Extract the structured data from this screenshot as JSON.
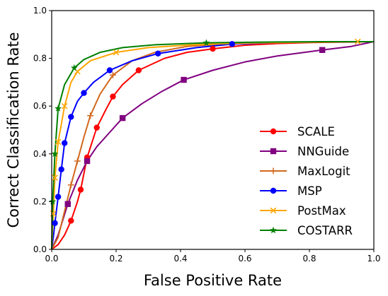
{
  "chart_data": {
    "type": "line",
    "title": "",
    "xlabel": "False Positive Rate",
    "ylabel": "Correct Classification Rate",
    "xlim": [
      0,
      1
    ],
    "ylim": [
      0,
      1
    ],
    "xticks": [
      "0.0",
      "0.2",
      "0.4",
      "0.6",
      "0.8",
      "1.0"
    ],
    "yticks": [
      "0.0",
      "0.2",
      "0.4",
      "0.6",
      "0.8",
      "1.0"
    ],
    "grid": false,
    "legend_position": "lower-right",
    "series": [
      {
        "name": "SCALE",
        "color": "#ff0000",
        "marker": "circle",
        "points": [
          [
            0,
            0
          ],
          [
            0.02,
            0.02
          ],
          [
            0.04,
            0.06
          ],
          [
            0.06,
            0.12
          ],
          [
            0.08,
            0.2
          ],
          [
            0.09,
            0.25
          ],
          [
            0.11,
            0.385
          ],
          [
            0.14,
            0.51
          ],
          [
            0.17,
            0.59
          ],
          [
            0.19,
            0.64
          ],
          [
            0.22,
            0.69
          ],
          [
            0.27,
            0.75
          ],
          [
            0.35,
            0.8
          ],
          [
            0.42,
            0.825
          ],
          [
            0.5,
            0.84
          ],
          [
            0.6,
            0.855
          ],
          [
            0.7,
            0.862
          ],
          [
            0.8,
            0.866
          ],
          [
            0.9,
            0.868
          ],
          [
            1.0,
            0.87
          ]
        ],
        "markers": [
          [
            0.06,
            0.12
          ],
          [
            0.09,
            0.25
          ],
          [
            0.11,
            0.385
          ],
          [
            0.14,
            0.51
          ],
          [
            0.19,
            0.64
          ],
          [
            0.27,
            0.75
          ],
          [
            0.5,
            0.84
          ]
        ]
      },
      {
        "name": "NNGuide",
        "color": "#800080",
        "marker": "square",
        "points": [
          [
            0,
            0
          ],
          [
            0.02,
            0.06
          ],
          [
            0.05,
            0.19
          ],
          [
            0.08,
            0.29
          ],
          [
            0.11,
            0.37
          ],
          [
            0.14,
            0.43
          ],
          [
            0.18,
            0.49
          ],
          [
            0.22,
            0.55
          ],
          [
            0.28,
            0.61
          ],
          [
            0.34,
            0.66
          ],
          [
            0.41,
            0.71
          ],
          [
            0.5,
            0.75
          ],
          [
            0.6,
            0.785
          ],
          [
            0.7,
            0.81
          ],
          [
            0.84,
            0.835
          ],
          [
            0.93,
            0.85
          ],
          [
            1.0,
            0.87
          ]
        ],
        "markers": [
          [
            0.05,
            0.19
          ],
          [
            0.11,
            0.37
          ],
          [
            0.22,
            0.55
          ],
          [
            0.41,
            0.71
          ],
          [
            0.84,
            0.835
          ]
        ]
      },
      {
        "name": "MaxLogit",
        "color": "#d2691e",
        "marker": "plus",
        "points": [
          [
            0,
            0
          ],
          [
            0.02,
            0.05
          ],
          [
            0.04,
            0.16
          ],
          [
            0.06,
            0.27
          ],
          [
            0.08,
            0.37
          ],
          [
            0.1,
            0.47
          ],
          [
            0.12,
            0.56
          ],
          [
            0.15,
            0.65
          ],
          [
            0.19,
            0.73
          ],
          [
            0.25,
            0.79
          ],
          [
            0.32,
            0.825
          ],
          [
            0.42,
            0.85
          ],
          [
            0.55,
            0.862
          ],
          [
            0.7,
            0.867
          ],
          [
            0.85,
            0.869
          ],
          [
            1.0,
            0.87
          ]
        ],
        "markers": [
          [
            0.06,
            0.27
          ],
          [
            0.08,
            0.37
          ],
          [
            0.12,
            0.56
          ],
          [
            0.19,
            0.73
          ]
        ]
      },
      {
        "name": "MSP",
        "color": "#0000ff",
        "marker": "circle",
        "points": [
          [
            0,
            0
          ],
          [
            0.005,
            0.05
          ],
          [
            0.01,
            0.11
          ],
          [
            0.02,
            0.22
          ],
          [
            0.03,
            0.335
          ],
          [
            0.04,
            0.445
          ],
          [
            0.06,
            0.555
          ],
          [
            0.08,
            0.62
          ],
          [
            0.1,
            0.655
          ],
          [
            0.13,
            0.7
          ],
          [
            0.18,
            0.75
          ],
          [
            0.25,
            0.79
          ],
          [
            0.33,
            0.82
          ],
          [
            0.45,
            0.845
          ],
          [
            0.56,
            0.86
          ],
          [
            0.7,
            0.866
          ],
          [
            0.85,
            0.869
          ],
          [
            1.0,
            0.87
          ]
        ],
        "markers": [
          [
            0.01,
            0.11
          ],
          [
            0.02,
            0.22
          ],
          [
            0.03,
            0.335
          ],
          [
            0.04,
            0.445
          ],
          [
            0.06,
            0.555
          ],
          [
            0.1,
            0.655
          ],
          [
            0.18,
            0.75
          ],
          [
            0.33,
            0.82
          ],
          [
            0.56,
            0.86
          ]
        ]
      },
      {
        "name": "PostMax",
        "color": "#ffa500",
        "marker": "x",
        "points": [
          [
            0,
            0
          ],
          [
            0.005,
            0.15
          ],
          [
            0.01,
            0.3
          ],
          [
            0.02,
            0.45
          ],
          [
            0.04,
            0.6
          ],
          [
            0.06,
            0.7
          ],
          [
            0.08,
            0.745
          ],
          [
            0.12,
            0.79
          ],
          [
            0.2,
            0.825
          ],
          [
            0.3,
            0.845
          ],
          [
            0.45,
            0.858
          ],
          [
            0.6,
            0.864
          ],
          [
            0.8,
            0.868
          ],
          [
            0.95,
            0.87
          ],
          [
            1.0,
            0.87
          ]
        ],
        "markers": [
          [
            0.005,
            0.15
          ],
          [
            0.01,
            0.3
          ],
          [
            0.02,
            0.45
          ],
          [
            0.04,
            0.6
          ],
          [
            0.08,
            0.745
          ],
          [
            0.2,
            0.825
          ],
          [
            0.95,
            0.87
          ]
        ]
      },
      {
        "name": "COSTARR",
        "color": "#008000",
        "marker": "star",
        "points": [
          [
            0,
            0
          ],
          [
            0.003,
            0.2
          ],
          [
            0.01,
            0.4
          ],
          [
            0.02,
            0.59
          ],
          [
            0.04,
            0.69
          ],
          [
            0.07,
            0.76
          ],
          [
            0.1,
            0.795
          ],
          [
            0.15,
            0.825
          ],
          [
            0.22,
            0.845
          ],
          [
            0.32,
            0.857
          ],
          [
            0.48,
            0.865
          ],
          [
            0.65,
            0.868
          ],
          [
            0.85,
            0.87
          ],
          [
            1.0,
            0.87
          ]
        ],
        "markers": [
          [
            0.003,
            0.2
          ],
          [
            0.01,
            0.4
          ],
          [
            0.02,
            0.59
          ],
          [
            0.07,
            0.76
          ],
          [
            0.48,
            0.865
          ]
        ]
      }
    ]
  }
}
